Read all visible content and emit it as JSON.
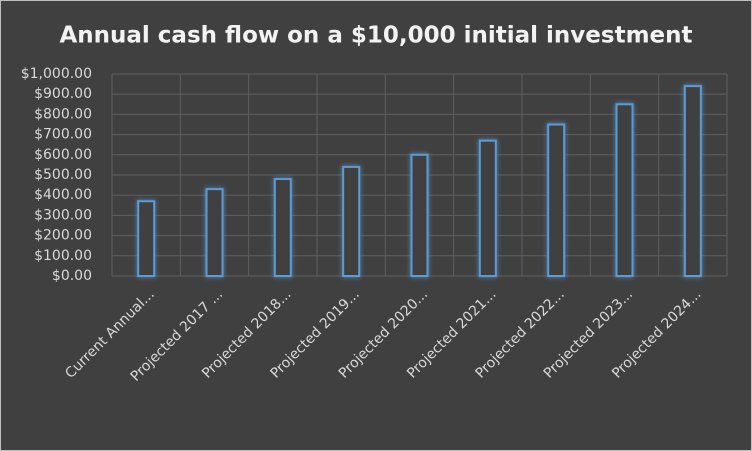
{
  "chart_data": {
    "type": "bar",
    "title": "Annual cash flow on a $10,000 initial investment",
    "categories": [
      "Current Annual...",
      "Projected 2017 ...",
      "Projected 2018...",
      "Projected 2019...",
      "Projected 2020...",
      "Projected 2021...",
      "Projected 2022...",
      "Projected 2023...",
      "Projected 2024..."
    ],
    "values": [
      370,
      430,
      480,
      540,
      600,
      670,
      750,
      850,
      940
    ],
    "color": "#5b9bd5",
    "ylim": [
      0,
      1000
    ],
    "yticks": [
      {
        "value": 0,
        "label": "$0.00"
      },
      {
        "value": 100,
        "label": "$100.00"
      },
      {
        "value": 200,
        "label": "$200.00"
      },
      {
        "value": 300,
        "label": "$300.00"
      },
      {
        "value": 400,
        "label": "$400.00"
      },
      {
        "value": 500,
        "label": "$500.00"
      },
      {
        "value": 600,
        "label": "$600.00"
      },
      {
        "value": 700,
        "label": "$700.00"
      },
      {
        "value": 800,
        "label": "$800.00"
      },
      {
        "value": 900,
        "label": "$900.00"
      },
      {
        "value": 1000,
        "label": "$1,000.00"
      }
    ],
    "grid": true
  }
}
